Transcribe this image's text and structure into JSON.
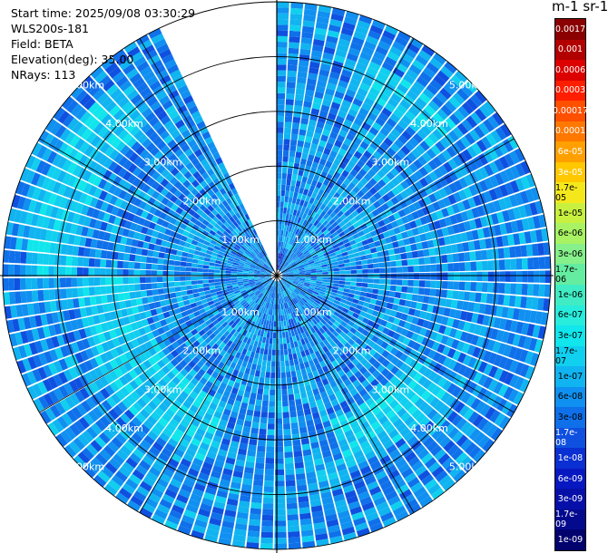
{
  "info": {
    "start_time": "Start time: 2025/09/08 03:30:29",
    "instrument": "WLS200s-181",
    "field": "Field: BETA",
    "elevation": "Elevation(deg): 35.00",
    "nrays": "NRays: 113"
  },
  "colorbar": {
    "title": "m-1 sr-1",
    "labels": [
      "0.0017",
      "0.001",
      "0.0006",
      "0.0003",
      "0.00017",
      "0.0001",
      "6e-05",
      "3e-05",
      "1.7e-05",
      "1e-05",
      "6e-06",
      "3e-06",
      "1.7e-06",
      "1e-06",
      "6e-07",
      "3e-07",
      "1.7e-07",
      "1e-07",
      "6e-08",
      "3e-08",
      "1.7e-08",
      "1e-08",
      "6e-09",
      "3e-09",
      "1.7e-09",
      "1e-09"
    ],
    "colors": [
      "#8b0000",
      "#b20000",
      "#dc0000",
      "#ff1e00",
      "#ff5000",
      "#ff7800",
      "#ffa000",
      "#ffc800",
      "#f4e81c",
      "#c8f040",
      "#a8f264",
      "#86f08a",
      "#64eca0",
      "#40ecc4",
      "#28ecdc",
      "#10e6ec",
      "#10cfef",
      "#10b4f0",
      "#1090f0",
      "#0f70ea",
      "#0f50e0",
      "#0a2fd2",
      "#0818c0",
      "#0610a8",
      "#040a8e",
      "#02026e"
    ]
  },
  "chart_data": {
    "type": "heatmap",
    "projection": "polar-ppi",
    "field": "BETA",
    "units": "m-1 sr-1",
    "scale": "log",
    "value_range": [
      1e-09,
      0.0017
    ],
    "nrays": 113,
    "elevation_deg": 35.0,
    "max_range_km": 5.0,
    "missing_sector_deg": [
      -25,
      0
    ],
    "range_rings_km": [
      1,
      2,
      3,
      4,
      5
    ],
    "ring_labels": [
      "1.00km",
      "2.00km",
      "3.00km",
      "4.00km",
      "5.00km"
    ],
    "typical_value": 6e-08,
    "enhanced_arcs": [
      {
        "azimuth_deg": [
          200,
          270
        ],
        "range_km": [
          2.5,
          3.6
        ],
        "value": 1.7e-07
      },
      {
        "azimuth_deg": [
          120,
          160
        ],
        "range_km": [
          2.8,
          3.7
        ],
        "value": 1.7e-07
      },
      {
        "azimuth_deg": [
          270,
          320
        ],
        "range_km": [
          3.6,
          4.6
        ],
        "value": 1.7e-07
      },
      {
        "azimuth_deg": [
          20,
          50
        ],
        "range_km": [
          3.6,
          4.3
        ],
        "value": 1.7e-07
      }
    ]
  }
}
